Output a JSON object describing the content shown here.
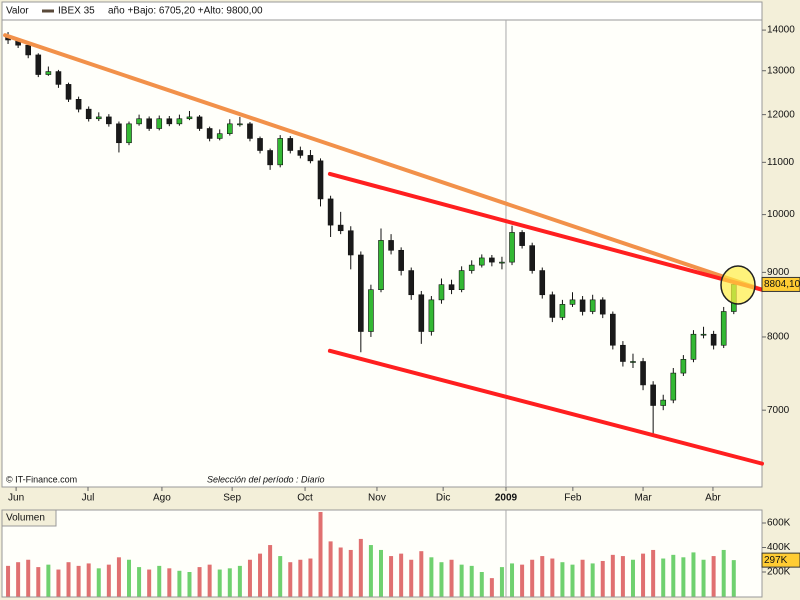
{
  "chart_data": [
    {
      "type": "candlestick",
      "label": "Valor",
      "stats": "año +Bajo: 6705,20 +Alto: 9800,00",
      "credit": "© IT-Finance.com",
      "period": "Selección del período : Diario",
      "log_scale": true,
      "x": [
        0,
        3,
        6,
        9,
        12,
        15,
        18,
        21,
        24,
        27,
        30,
        33,
        36,
        39,
        42,
        45,
        48,
        51,
        54,
        57,
        60,
        63,
        66,
        69,
        72,
        75,
        78,
        81,
        84,
        87,
        90,
        93,
        96,
        99,
        102,
        105,
        108,
        111,
        114,
        117,
        120,
        123,
        126,
        129,
        132,
        135,
        138,
        141,
        144,
        147,
        150,
        153,
        156,
        159,
        162,
        165,
        168,
        171,
        174,
        177,
        180,
        183,
        186,
        189,
        192,
        195,
        198,
        201,
        204,
        207,
        210,
        213,
        216
      ],
      "xlim": [
        -1.8,
        224.4
      ],
      "xticks": [
        {
          "value": 2.4,
          "label": "Jun"
        },
        {
          "value": 23.8,
          "label": "Jul"
        },
        {
          "value": 45.8,
          "label": "Ago"
        },
        {
          "value": 66.7,
          "label": "Sep"
        },
        {
          "value": 88.4,
          "label": "Oct"
        },
        {
          "value": 109.8,
          "label": "Nov"
        },
        {
          "value": 129.5,
          "label": "Dic"
        },
        {
          "value": 148.2,
          "label": "2009"
        },
        {
          "value": 168.1,
          "label": "Feb"
        },
        {
          "value": 189,
          "label": "Mar"
        },
        {
          "value": 209.8,
          "label": "Abr"
        }
      ],
      "ylim": [
        6085,
        14260
      ],
      "yticks": [
        7000,
        8000,
        9000,
        10000,
        11000,
        12000,
        13000,
        14000
      ],
      "series": [
        {
          "name": "IBEX 35",
          "color": "#5a4a3a",
          "up_color": "#33b833",
          "down_color": "#1a1a1a",
          "open": [
            13850,
            13750,
            13620,
            13380,
            12910,
            12980,
            12680,
            12340,
            12120,
            11910,
            11950,
            11800,
            11400,
            11800,
            11910,
            11700,
            11910,
            11800,
            11910,
            11950,
            11700,
            11490,
            11590,
            11800,
            11800,
            11490,
            11240,
            10950,
            11490,
            11240,
            11140,
            11030,
            10290,
            9810,
            9710,
            9290,
            8080,
            8720,
            9540,
            9370,
            9030,
            8640,
            8080,
            8560,
            8800,
            8720,
            9030,
            9120,
            9240,
            9170,
            9170,
            9680,
            9450,
            9030,
            8640,
            8290,
            8490,
            8560,
            8380,
            8560,
            8340,
            7880,
            7650,
            7650,
            7330,
            7060,
            7130,
            7490,
            7680,
            8040,
            8040,
            7880,
            8380
          ],
          "high": [
            13950,
            13800,
            13700,
            13420,
            13100,
            13020,
            12720,
            12400,
            12180,
            12050,
            12010,
            11850,
            11850,
            12000,
            11960,
            11980,
            11970,
            12000,
            12080,
            11990,
            11740,
            11680,
            11900,
            11950,
            11840,
            11530,
            11280,
            11560,
            11540,
            11320,
            11250,
            11080,
            10350,
            10050,
            9790,
            9350,
            8800,
            9750,
            9650,
            9420,
            9080,
            8700,
            8620,
            8900,
            8880,
            9100,
            9200,
            9300,
            9290,
            9260,
            9800,
            9720,
            9500,
            9080,
            8690,
            8560,
            8680,
            8620,
            8640,
            8600,
            8380,
            7940,
            7760,
            7700,
            7380,
            7200,
            7560,
            7740,
            8100,
            8150,
            8090,
            8450,
            8880
          ],
          "low": [
            13650,
            13550,
            13300,
            12850,
            12880,
            12600,
            12280,
            12050,
            11850,
            11860,
            11740,
            11200,
            11350,
            11760,
            11650,
            11660,
            11750,
            11760,
            11880,
            11650,
            11430,
            11450,
            11550,
            11740,
            11430,
            11180,
            10850,
            10900,
            11180,
            11080,
            10980,
            10150,
            9600,
            9650,
            9050,
            7780,
            8000,
            8680,
            9300,
            8950,
            8560,
            7900,
            8020,
            8500,
            8650,
            8680,
            8980,
            9080,
            9100,
            9050,
            9120,
            9400,
            8980,
            8580,
            8220,
            8250,
            8450,
            8320,
            8340,
            8280,
            7820,
            7580,
            7560,
            7260,
            6705.2,
            7000,
            7090,
            7450,
            7640,
            7980,
            7820,
            7840,
            8340
          ],
          "close": [
            13750,
            13620,
            13380,
            12910,
            12980,
            12680,
            12340,
            12120,
            11910,
            11950,
            11800,
            11400,
            11800,
            11910,
            11700,
            11910,
            11800,
            11910,
            11950,
            11700,
            11490,
            11590,
            11800,
            11800,
            11490,
            11240,
            10950,
            11490,
            11240,
            11140,
            11030,
            10290,
            9810,
            9710,
            9290,
            8080,
            8720,
            9540,
            9370,
            9030,
            8640,
            8080,
            8560,
            8800,
            8720,
            9030,
            9120,
            9240,
            9170,
            9170,
            9680,
            9450,
            9030,
            8640,
            8290,
            8490,
            8560,
            8380,
            8560,
            8340,
            7880,
            7650,
            7650,
            7330,
            7060,
            7130,
            7490,
            7680,
            8040,
            8040,
            7880,
            8380,
            8804.1
          ]
        }
      ],
      "last_value": {
        "value": 8804.1,
        "label": "8804,10"
      },
      "last_value_color": "#ffcc33",
      "trendlines": [
        {
          "color": "#f2914a",
          "x": [
            -0.9,
            224.4
          ],
          "values": [
            13870,
            8720
          ]
        },
        {
          "color": "#ff1f1f",
          "x": [
            95.8,
            224.4
          ],
          "values": [
            10770,
            8720
          ]
        },
        {
          "color": "#ff1f1f",
          "x": [
            95.8,
            224.4
          ],
          "values": [
            7800,
            6350
          ]
        }
      ]
    },
    {
      "type": "bar",
      "label": "Volumen",
      "up_color": "#6fd16f",
      "down_color": "#e07070",
      "values": [
        250000,
        280000,
        300000,
        240000,
        260000,
        220000,
        280000,
        250000,
        270000,
        230000,
        260000,
        320000,
        300000,
        240000,
        220000,
        250000,
        230000,
        210000,
        200000,
        240000,
        260000,
        220000,
        230000,
        250000,
        300000,
        350000,
        420000,
        330000,
        280000,
        300000,
        310000,
        690000,
        450000,
        400000,
        380000,
        470000,
        420000,
        380000,
        330000,
        350000,
        300000,
        370000,
        320000,
        280000,
        300000,
        260000,
        250000,
        200000,
        150000,
        240000,
        270000,
        260000,
        300000,
        330000,
        310000,
        280000,
        260000,
        300000,
        270000,
        290000,
        340000,
        330000,
        300000,
        350000,
        380000,
        310000,
        340000,
        320000,
        360000,
        300000,
        330000,
        380000,
        297000
      ],
      "ylim": [
        0,
        700000
      ],
      "yticks": [
        {
          "value": 200000,
          "label": "200K"
        },
        {
          "value": 400000,
          "label": "400K"
        },
        {
          "value": 600000,
          "label": "600K"
        }
      ],
      "last_value": {
        "value": 297000,
        "label": "297K"
      },
      "last_value_color": "#ffcc33"
    }
  ]
}
